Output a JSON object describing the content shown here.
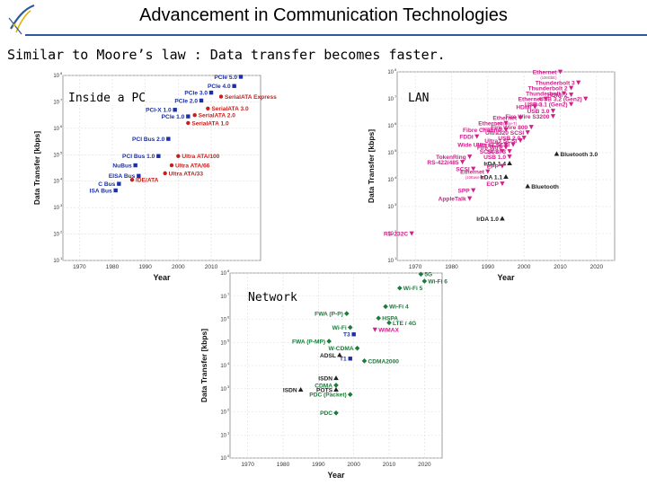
{
  "slide": {
    "title": "Advancement in Communication Technologies",
    "subtitle": "Similar to Moore’s law :  Data transfer becomes faster."
  },
  "colors": {
    "blue": "#1a2fa8",
    "red": "#c81e1e",
    "magenta": "#d0208a",
    "dark": "#222222",
    "green": "#1c7a3a",
    "rule": "#2a5a9a"
  },
  "panels": [
    {
      "id": "pc",
      "label": "Inside a PC",
      "xlabel": "Year",
      "ylabel": "Data Transfer [kbps]",
      "xticks": [
        "1970",
        "1980",
        "1990",
        "2000",
        "2010"
      ],
      "yticks": [
        "10",
        "10",
        "10",
        "10",
        "10",
        "10",
        "10",
        "10"
      ],
      "points": [
        {
          "label": "PCIe 5.0",
          "x": 2019,
          "y": 7.95,
          "c": "blue"
        },
        {
          "label": "PCIe 4.0",
          "x": 2017,
          "y": 7.6,
          "c": "blue"
        },
        {
          "label": "PCIe 3.0",
          "x": 2010,
          "y": 7.35,
          "c": "blue"
        },
        {
          "label": "PCIe 2.0",
          "x": 2007,
          "y": 7.05,
          "c": "blue"
        },
        {
          "label": "SerialATA Express",
          "x": 2013,
          "y": 7.2,
          "c": "red"
        },
        {
          "label": "SerialATA 3.0",
          "x": 2009,
          "y": 6.75,
          "c": "red"
        },
        {
          "label": "SerialATA 2.0",
          "x": 2005,
          "y": 6.5,
          "c": "red"
        },
        {
          "label": "SerialATA 1.0",
          "x": 2003,
          "y": 6.2,
          "c": "red"
        },
        {
          "label": "PCI-X 1.0",
          "x": 1999,
          "y": 6.7,
          "c": "blue"
        },
        {
          "label": "PCIe 1.0",
          "x": 2003,
          "y": 6.45,
          "c": "blue"
        },
        {
          "label": "PCI Bus 2.0",
          "x": 1997,
          "y": 5.6,
          "c": "blue"
        },
        {
          "label": "PCI Bus 1.0",
          "x": 1994,
          "y": 4.95,
          "c": "blue"
        },
        {
          "label": "Ultra ATA/100",
          "x": 2000,
          "y": 4.95,
          "c": "red"
        },
        {
          "label": "NuBus",
          "x": 1987,
          "y": 4.6,
          "c": "blue"
        },
        {
          "label": "Ultra ATA/66",
          "x": 1998,
          "y": 4.6,
          "c": "red"
        },
        {
          "label": "Ultra ATA/33",
          "x": 1996,
          "y": 4.3,
          "c": "red"
        },
        {
          "label": "EISA Bus",
          "x": 1988,
          "y": 4.2,
          "c": "blue"
        },
        {
          "label": "IDE/ATA",
          "x": 1986,
          "y": 4.05,
          "c": "red"
        },
        {
          "label": "C Bus",
          "x": 1982,
          "y": 3.9,
          "c": "blue"
        },
        {
          "label": "ISA Bus",
          "x": 1981,
          "y": 3.65,
          "c": "blue"
        }
      ]
    },
    {
      "id": "lan",
      "label": "LAN",
      "xlabel": "Year",
      "ylabel": "Data Transfer [kbps]",
      "xticks": [
        "1970",
        "1980",
        "1990",
        "2000",
        "2010",
        "2020"
      ],
      "yticks": [
        "10",
        "10",
        "10",
        "10",
        "10",
        "10",
        "10",
        "10"
      ],
      "points": [
        {
          "label": "Ethernet",
          "note": "(100GbE)",
          "x": 2010,
          "y": 8.0,
          "c": "magenta"
        },
        {
          "label": "HDMI 2",
          "x": 2013,
          "y": 7.15,
          "c": "magenta"
        },
        {
          "label": "Thunderbolt 3",
          "x": 2015,
          "y": 7.6,
          "c": "magenta"
        },
        {
          "label": "Thunderbolt 2",
          "x": 2013,
          "y": 7.4,
          "c": "magenta"
        },
        {
          "label": "Thunderbolt",
          "x": 2011,
          "y": 7.2,
          "c": "magenta"
        },
        {
          "label": "USB 3.2 (Gen2)",
          "x": 2017,
          "y": 7.0,
          "c": "magenta"
        },
        {
          "label": "Ethernet",
          "note": "(10GbE)",
          "x": 2006,
          "y": 7.0,
          "c": "magenta"
        },
        {
          "label": "HDMI",
          "x": 2003,
          "y": 6.7,
          "c": "magenta"
        },
        {
          "label": "USB 3.1 (Gen2)",
          "x": 2013,
          "y": 6.8,
          "c": "magenta"
        },
        {
          "label": "USB 3.0",
          "x": 2008,
          "y": 6.55,
          "c": "magenta"
        },
        {
          "label": "Ethernet",
          "note": "(1000Base-T)",
          "x": 1999,
          "y": 6.3,
          "c": "magenta"
        },
        {
          "label": "Ethernet",
          "note": "(100Base-T)",
          "x": 1995,
          "y": 6.1,
          "c": "magenta"
        },
        {
          "label": "Fire Wire S3200",
          "x": 2008,
          "y": 6.35,
          "c": "magenta"
        },
        {
          "label": "Fibre Channel",
          "x": 1995,
          "y": 5.85,
          "c": "magenta"
        },
        {
          "label": "Fire Wire 800",
          "x": 2002,
          "y": 5.95,
          "c": "magenta"
        },
        {
          "label": "Ultra320 SCSI",
          "x": 2001,
          "y": 5.75,
          "c": "magenta"
        },
        {
          "label": "FDDI",
          "x": 1987,
          "y": 5.6,
          "c": "magenta"
        },
        {
          "label": "USB 2.0",
          "x": 2000,
          "y": 5.55,
          "c": "magenta"
        },
        {
          "label": "Ultra3 SCSI",
          "x": 1999,
          "y": 5.45,
          "c": "magenta"
        },
        {
          "label": "Wide Ultra SCSI",
          "x": 1995,
          "y": 5.3,
          "c": "magenta"
        },
        {
          "label": "Ultra2 SCSI",
          "x": 1997,
          "y": 5.3,
          "c": "magenta"
        },
        {
          "label": "Fire Wire",
          "x": 1995,
          "y": 5.2,
          "c": "magenta"
        },
        {
          "label": "SCSI-2",
          "x": 1994,
          "y": 5.05,
          "c": "magenta"
        },
        {
          "label": "SCSI-3",
          "x": 1996,
          "y": 5.05,
          "c": "magenta"
        },
        {
          "label": "Bluetooth 3.0",
          "x": 2009,
          "y": 4.95,
          "c": "dark"
        },
        {
          "label": "TokenRing",
          "x": 1985,
          "y": 4.85,
          "c": "magenta"
        },
        {
          "label": "USB 1.0",
          "x": 1996,
          "y": 4.85,
          "c": "magenta"
        },
        {
          "label": "RS-422/485",
          "x": 1983,
          "y": 4.65,
          "c": "magenta"
        },
        {
          "label": "IrDA 1.4",
          "x": 1996,
          "y": 4.6,
          "c": "dark"
        },
        {
          "label": "EPP",
          "x": 1994,
          "y": 4.5,
          "c": "magenta"
        },
        {
          "label": "SCSI",
          "x": 1986,
          "y": 4.4,
          "c": "magenta"
        },
        {
          "label": "Ethernet",
          "note": "(10Base-T)",
          "x": 1990,
          "y": 4.3,
          "c": "magenta"
        },
        {
          "label": "IrDA 1.1",
          "x": 1995,
          "y": 4.1,
          "c": "dark"
        },
        {
          "label": "ECP",
          "x": 1994,
          "y": 3.85,
          "c": "magenta"
        },
        {
          "label": "Bluetooth",
          "x": 2001,
          "y": 3.75,
          "c": "dark"
        },
        {
          "label": "SPP",
          "x": 1986,
          "y": 3.6,
          "c": "magenta"
        },
        {
          "label": "AppleTalk",
          "x": 1985,
          "y": 3.3,
          "c": "magenta"
        },
        {
          "label": "IrDA 1.0",
          "x": 1994,
          "y": 2.55,
          "c": "dark"
        },
        {
          "label": "RS-232C",
          "x": 1969,
          "y": 2.0,
          "c": "magenta"
        }
      ]
    },
    {
      "id": "network",
      "label": "Network",
      "xlabel": "Year",
      "ylabel": "Data Transfer [kbps]",
      "xticks": [
        "1970",
        "1980",
        "1990",
        "2000",
        "2010",
        "2020"
      ],
      "yticks": [
        "10",
        "10",
        "10",
        "10",
        "10",
        "10",
        "10",
        "10",
        "10"
      ],
      "points": [
        {
          "label": "5G",
          "x": 2019,
          "y": 7.95,
          "c": "green"
        },
        {
          "label": "Wi-Fi 6",
          "x": 2020,
          "y": 7.65,
          "c": "green"
        },
        {
          "label": "Wi-Fi 5",
          "x": 2013,
          "y": 7.35,
          "c": "green"
        },
        {
          "label": "Wi-Fi 4",
          "x": 2009,
          "y": 6.55,
          "c": "green"
        },
        {
          "label": "FWA (P-P)",
          "x": 1998,
          "y": 6.25,
          "c": "green"
        },
        {
          "label": "HSPA",
          "x": 2007,
          "y": 6.05,
          "c": "green"
        },
        {
          "label": "LTE / 4G",
          "x": 2010,
          "y": 5.85,
          "c": "green"
        },
        {
          "label": "Wi-Fi",
          "x": 1999,
          "y": 5.65,
          "c": "green"
        },
        {
          "label": "WiMAX",
          "x": 2006,
          "y": 5.55,
          "c": "magenta"
        },
        {
          "label": "T3",
          "x": 2000,
          "y": 5.35,
          "c": "blue"
        },
        {
          "label": "FWA (P-MP)",
          "x": 1993,
          "y": 5.05,
          "c": "green"
        },
        {
          "label": "W-CDMA",
          "x": 2001,
          "y": 4.75,
          "c": "green"
        },
        {
          "label": "ADSL",
          "x": 1996,
          "y": 4.45,
          "c": "dark"
        },
        {
          "label": "T1",
          "x": 1999,
          "y": 4.3,
          "c": "blue"
        },
        {
          "label": "CDMA2000",
          "x": 2003,
          "y": 4.2,
          "c": "green"
        },
        {
          "label": "ISDN",
          "x": 1995,
          "y": 3.45,
          "c": "dark"
        },
        {
          "label": "CDMA",
          "x": 1995,
          "y": 3.15,
          "c": "green"
        },
        {
          "label": "ISDN",
          "x": 1985,
          "y": 2.95,
          "c": "dark"
        },
        {
          "label": "POTS",
          "x": 1995,
          "y": 2.95,
          "c": "dark"
        },
        {
          "label": "PDC (Packet)",
          "x": 1999,
          "y": 2.75,
          "c": "green"
        },
        {
          "label": "PDC",
          "x": 1995,
          "y": 1.95,
          "c": "green"
        }
      ]
    }
  ]
}
